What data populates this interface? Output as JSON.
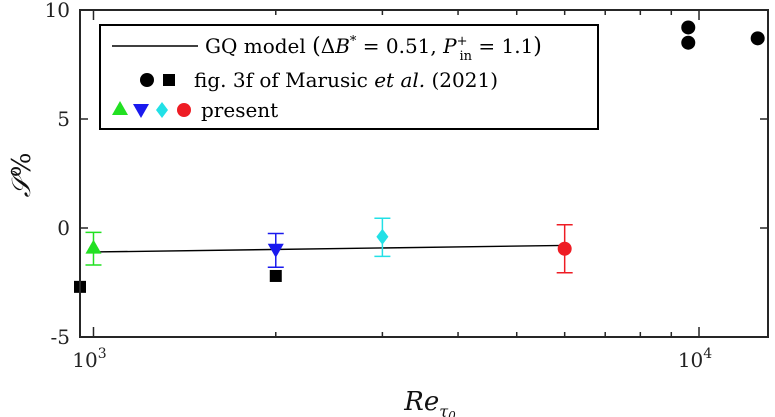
{
  "chart_data": {
    "type": "scatter",
    "x_scale": "log",
    "xlim": [
      950,
      13000
    ],
    "ylim": [
      -5,
      10
    ],
    "xlabel": "Re_τ0",
    "ylabel": "S%",
    "x_ticks": [
      {
        "value": 1000,
        "base": "10",
        "exp": "3"
      },
      {
        "value": 10000,
        "base": "10",
        "exp": "4"
      }
    ],
    "y_ticks": [
      {
        "value": -5,
        "label": "-5"
      },
      {
        "value": 0,
        "label": "0"
      },
      {
        "value": 5,
        "label": "5"
      },
      {
        "value": 10,
        "label": "10"
      }
    ],
    "grid": false,
    "legend_position": "top-left",
    "legend": [
      {
        "text": "GQ model (ΔB* = 0.51, P_in⁺ = 1.1)",
        "marker": "line"
      },
      {
        "text": "fig. 3f of Marusic et al. (2021)",
        "marker": "circle-square"
      },
      {
        "text": "present",
        "marker": "colored"
      }
    ],
    "series": [
      {
        "name": "GQ model",
        "type": "line",
        "color": "#000000",
        "points": [
          {
            "x": 1000,
            "y": -1.1
          },
          {
            "x": 6000,
            "y": -0.8
          }
        ]
      },
      {
        "name": "Marusic et al. (2021) circles",
        "marker": "circle",
        "color": "#000000",
        "points": [
          {
            "x": 9600,
            "y": 9.2
          },
          {
            "x": 9600,
            "y": 8.5
          },
          {
            "x": 12500,
            "y": 8.7
          }
        ]
      },
      {
        "name": "Marusic et al. (2021) squares",
        "marker": "square",
        "color": "#000000",
        "points": [
          {
            "x": 950,
            "y": -2.7
          },
          {
            "x": 2000,
            "y": -2.2
          }
        ]
      },
      {
        "name": "present",
        "points": [
          {
            "x": 1000,
            "y": -0.9,
            "err_low": -1.7,
            "err_high": -0.2,
            "marker": "triangle-up",
            "color": "#22e022"
          },
          {
            "x": 2000,
            "y": -1.0,
            "err_low": -1.8,
            "err_high": -0.25,
            "marker": "triangle-down",
            "color": "#1a1aee"
          },
          {
            "x": 3000,
            "y": -0.4,
            "err_low": -1.3,
            "err_high": 0.45,
            "marker": "diamond",
            "color": "#22e0e6"
          },
          {
            "x": 6000,
            "y": -0.95,
            "err_low": -2.05,
            "err_high": 0.15,
            "marker": "circle",
            "color": "#ee1c24"
          }
        ]
      }
    ]
  }
}
